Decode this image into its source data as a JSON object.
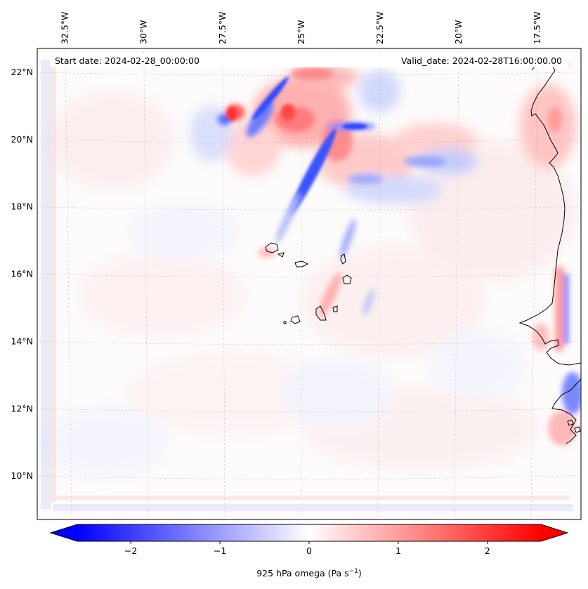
{
  "header": {
    "start_label": "Start date: 2024-02-28_00:00:00",
    "valid_label": "Valid_date: 2024-02-28T16:00:00.00"
  },
  "map": {
    "lon_range": [
      -33.5,
      -16.0
    ],
    "lat_range": [
      8.8,
      22.8
    ],
    "lon_labels": [
      {
        "lon": -32.5,
        "text": "32.5°W"
      },
      {
        "lon": -30.0,
        "text": "30°W"
      },
      {
        "lon": -27.5,
        "text": "27.5°W"
      },
      {
        "lon": -25.0,
        "text": "25°W"
      },
      {
        "lon": -22.5,
        "text": "22.5°W"
      },
      {
        "lon": -20.0,
        "text": "20°W"
      },
      {
        "lon": -17.5,
        "text": "17.5°W"
      }
    ],
    "lat_labels": [
      {
        "lat": 22,
        "text": "22°N"
      },
      {
        "lat": 20,
        "text": "20°N"
      },
      {
        "lat": 18,
        "text": "18°N"
      },
      {
        "lat": 16,
        "text": "16°N"
      },
      {
        "lat": 14,
        "text": "14°N"
      },
      {
        "lat": 12,
        "text": "12°N"
      },
      {
        "lat": 10,
        "text": "10°N"
      }
    ],
    "gridlines": true
  },
  "colorbar": {
    "label_main": "925 hPa omega (Pa s",
    "label_exp": "−1",
    "label_close": ")",
    "range": [
      -2.6,
      2.6
    ],
    "ticks": [
      {
        "value": -2,
        "text": "−2"
      },
      {
        "value": -1,
        "text": "−1"
      },
      {
        "value": 0,
        "text": "0"
      },
      {
        "value": 1,
        "text": "1"
      },
      {
        "value": 2,
        "text": "2"
      }
    ],
    "extend": "both",
    "colors": {
      "neg": "#0000ff",
      "mid": "#ffffff",
      "pos": "#ff0000"
    }
  }
}
